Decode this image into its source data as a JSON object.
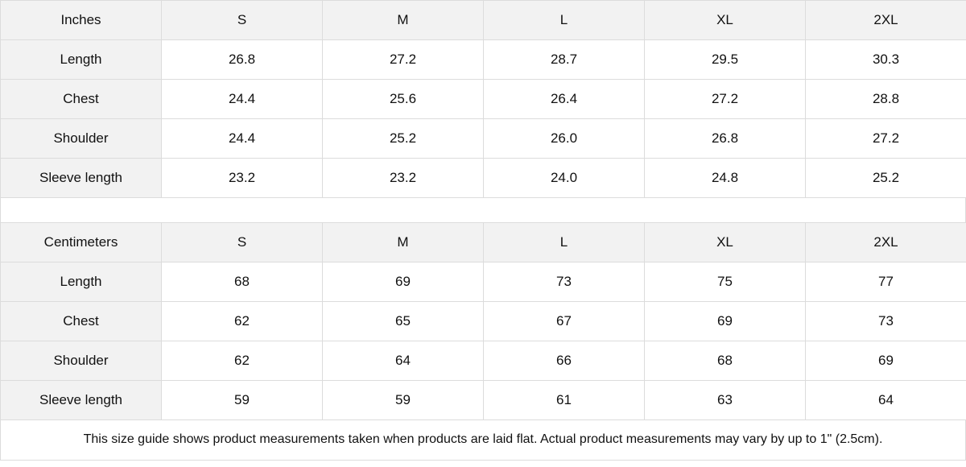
{
  "tables": [
    {
      "unit": "Inches",
      "sizes": [
        "S",
        "M",
        "L",
        "XL",
        "2XL"
      ],
      "rows": [
        {
          "label": "Length",
          "values": [
            "26.8",
            "27.2",
            "28.7",
            "29.5",
            "30.3"
          ]
        },
        {
          "label": "Chest",
          "values": [
            "24.4",
            "25.6",
            "26.4",
            "27.2",
            "28.8"
          ]
        },
        {
          "label": "Shoulder",
          "values": [
            "24.4",
            "25.2",
            "26.0",
            "26.8",
            "27.2"
          ]
        },
        {
          "label": "Sleeve length",
          "values": [
            "23.2",
            "23.2",
            "24.0",
            "24.8",
            "25.2"
          ]
        }
      ]
    },
    {
      "unit": "Centimeters",
      "sizes": [
        "S",
        "M",
        "L",
        "XL",
        "2XL"
      ],
      "rows": [
        {
          "label": "Length",
          "values": [
            "68",
            "69",
            "73",
            "75",
            "77"
          ]
        },
        {
          "label": "Chest",
          "values": [
            "62",
            "65",
            "67",
            "69",
            "73"
          ]
        },
        {
          "label": "Shoulder",
          "values": [
            "62",
            "64",
            "66",
            "68",
            "69"
          ]
        },
        {
          "label": "Sleeve length",
          "values": [
            "59",
            "59",
            "61",
            "63",
            "64"
          ]
        }
      ]
    }
  ],
  "note": "This size guide shows product measurements taken when products are laid flat.  Actual product measurements may vary by up to 1\" (2.5cm)."
}
